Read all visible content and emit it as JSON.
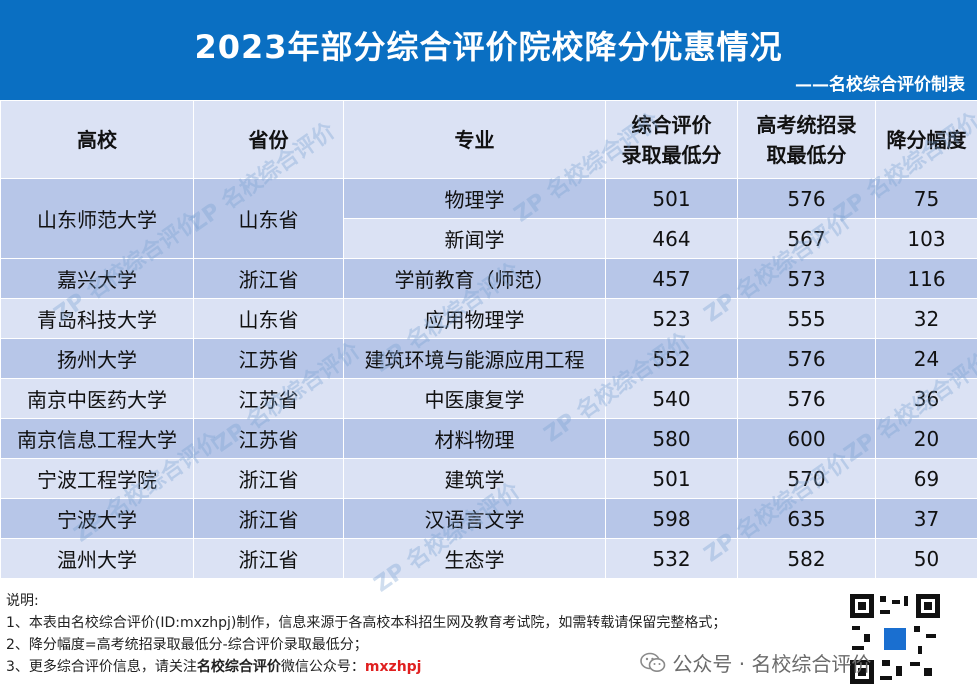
{
  "banner": {
    "title": "2023年部分综合评价院校降分优惠情况",
    "credit": "——名校综合评价制表",
    "color": "#0a6fc2"
  },
  "table": {
    "headers": {
      "school": "高校",
      "province": "省份",
      "major": "专业",
      "comp_min_1": "综合评价",
      "comp_min_2": "录取最低分",
      "gaokao_min_1": "高考统招录",
      "gaokao_min_2": "取最低分",
      "reduction": "降分幅度"
    },
    "rows": [
      {
        "school": "山东师范大学",
        "province": "山东省",
        "major": "物理学",
        "comp": "501",
        "gaokao": "576",
        "reduction": "75"
      },
      {
        "school": "",
        "province": "",
        "major": "新闻学",
        "comp": "464",
        "gaokao": "567",
        "reduction": "103"
      },
      {
        "school": "嘉兴大学",
        "province": "浙江省",
        "major": "学前教育（师范）",
        "comp": "457",
        "gaokao": "573",
        "reduction": "116"
      },
      {
        "school": "青岛科技大学",
        "province": "山东省",
        "major": "应用物理学",
        "comp": "523",
        "gaokao": "555",
        "reduction": "32"
      },
      {
        "school": "扬州大学",
        "province": "江苏省",
        "major": "建筑环境与能源应用工程",
        "comp": "552",
        "gaokao": "576",
        "reduction": "24"
      },
      {
        "school": "南京中医药大学",
        "province": "江苏省",
        "major": "中医康复学",
        "comp": "540",
        "gaokao": "576",
        "reduction": "36"
      },
      {
        "school": "南京信息工程大学",
        "province": "江苏省",
        "major": "材料物理",
        "comp": "580",
        "gaokao": "600",
        "reduction": "20"
      },
      {
        "school": "宁波工程学院",
        "province": "浙江省",
        "major": "建筑学",
        "comp": "501",
        "gaokao": "570",
        "reduction": "69"
      },
      {
        "school": "宁波大学",
        "province": "浙江省",
        "major": "汉语言文学",
        "comp": "598",
        "gaokao": "635",
        "reduction": "37"
      },
      {
        "school": "温州大学",
        "province": "浙江省",
        "major": "生态学",
        "comp": "532",
        "gaokao": "582",
        "reduction": "50"
      }
    ]
  },
  "notes": {
    "heading": "说明:",
    "line1": "1、本表由名校综合评价(ID:mxzhpj)制作，信息来源于各高校本科招生网及教育考试院，如需转载请保留完整格式；",
    "line2": "2、降分幅度=高考统招录取最低分-综合评价录取最低分；",
    "line3_prefix": "3、更多综合评价信息，请关注",
    "line3_brand": "名校综合评价",
    "line3_mid": "微信公众号：",
    "line3_id": "mxzhpj"
  },
  "watermark": {
    "text": "ZP 名校综合评价"
  },
  "wechat": {
    "label": "公众号 · 名校综合评价"
  }
}
